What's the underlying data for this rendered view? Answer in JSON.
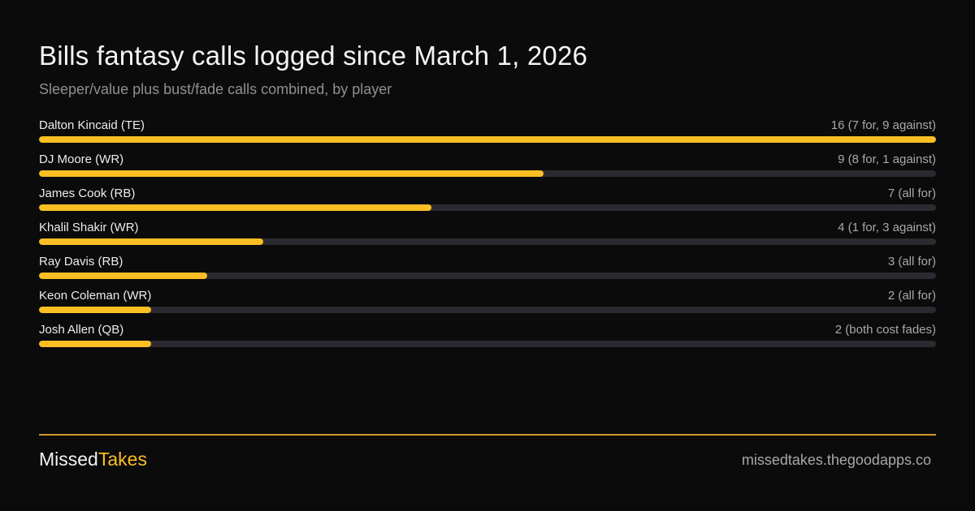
{
  "header": {
    "title": "Bills fantasy calls logged since March 1, 2026",
    "subtitle": "Sleeper/value plus bust/fade calls combined, by player"
  },
  "chart_data": {
    "type": "bar",
    "orientation": "horizontal",
    "title": "Bills fantasy calls logged since March 1, 2026",
    "subtitle": "Sleeper/value plus bust/fade calls combined, by player",
    "xlim": [
      0,
      16
    ],
    "grid": false,
    "categories": [
      "Dalton Kincaid (TE)",
      "DJ Moore (WR)",
      "James Cook (RB)",
      "Khalil Shakir (WR)",
      "Ray Davis (RB)",
      "Keon Coleman (WR)",
      "Josh Allen (QB)"
    ],
    "values": [
      16,
      9,
      7,
      4,
      3,
      2,
      2
    ],
    "value_labels": [
      "16 (7 for, 9 against)",
      "9 (8 for, 1 against)",
      "7 (all for)",
      "4 (1 for, 3 against)",
      "3 (all for)",
      "2 (all for)",
      "2 (both cost fades)"
    ],
    "colors": {
      "bar": "#fbbf24",
      "track": "#2b2a30"
    }
  },
  "footer": {
    "brand_part1": "Missed",
    "brand_part2": "Takes",
    "site": "missedtakes.thegoodapps.co",
    "accent": "#fbbf24"
  }
}
